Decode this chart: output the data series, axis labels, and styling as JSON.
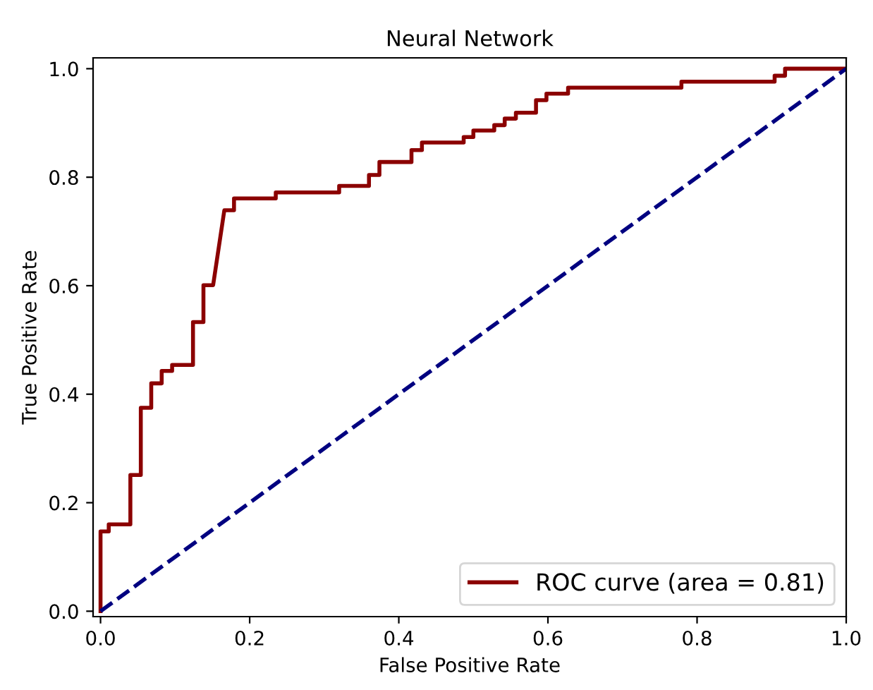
{
  "chart_data": {
    "type": "line",
    "title": "Neural Network",
    "xlabel": "False Positive Rate",
    "ylabel": "True Positive Rate",
    "xlim": [
      -0.01,
      1.0
    ],
    "ylim": [
      -0.01,
      1.02
    ],
    "xticks": [
      {
        "value": 0,
        "label": "0.0"
      },
      0.2,
      0.4,
      0.6,
      0.8,
      {
        "value": 1,
        "label": "1.0"
      }
    ],
    "yticks": [
      {
        "value": 0,
        "label": "0.0"
      },
      0.2,
      0.4,
      0.6,
      0.8,
      {
        "value": 1,
        "label": "1.0"
      }
    ],
    "grid": false,
    "legend": "bottom right",
    "marker": "none",
    "series": [
      {
        "name": "ROC curve (area = 0.81)",
        "color": "#8b0000",
        "line_style": "solid",
        "x": [
          0,
          0,
          0.011,
          0.011,
          0.04,
          0.04,
          0.054,
          0.054,
          0.068,
          0.068,
          0.082,
          0.082,
          0.096,
          0.096,
          0.124,
          0.124,
          0.138,
          0.138,
          0.151,
          0.166,
          0.179,
          0.179,
          0.235,
          0.235,
          0.32,
          0.32,
          0.36,
          0.36,
          0.374,
          0.374,
          0.417,
          0.417,
          0.431,
          0.431,
          0.487,
          0.487,
          0.5,
          0.5,
          0.528,
          0.528,
          0.542,
          0.542,
          0.557,
          0.557,
          0.584,
          0.584,
          0.598,
          0.598,
          0.627,
          0.627,
          0.779,
          0.779,
          0.904,
          0.904,
          0.918,
          0.918,
          1.0
        ],
        "values": [
          0,
          0.147,
          0.147,
          0.16,
          0.16,
          0.251,
          0.251,
          0.375,
          0.375,
          0.42,
          0.42,
          0.443,
          0.443,
          0.454,
          0.454,
          0.533,
          0.533,
          0.601,
          0.601,
          0.739,
          0.739,
          0.761,
          0.761,
          0.772,
          0.772,
          0.784,
          0.784,
          0.804,
          0.804,
          0.828,
          0.828,
          0.85,
          0.85,
          0.864,
          0.864,
          0.874,
          0.874,
          0.886,
          0.886,
          0.896,
          0.896,
          0.908,
          0.908,
          0.919,
          0.919,
          0.942,
          0.942,
          0.954,
          0.954,
          0.965,
          0.965,
          0.976,
          0.976,
          0.987,
          0.987,
          1.0,
          1.0
        ]
      },
      {
        "color": "#000080",
        "line_style": "dashed",
        "x": [
          0,
          1
        ],
        "values": [
          0,
          1
        ]
      }
    ]
  }
}
